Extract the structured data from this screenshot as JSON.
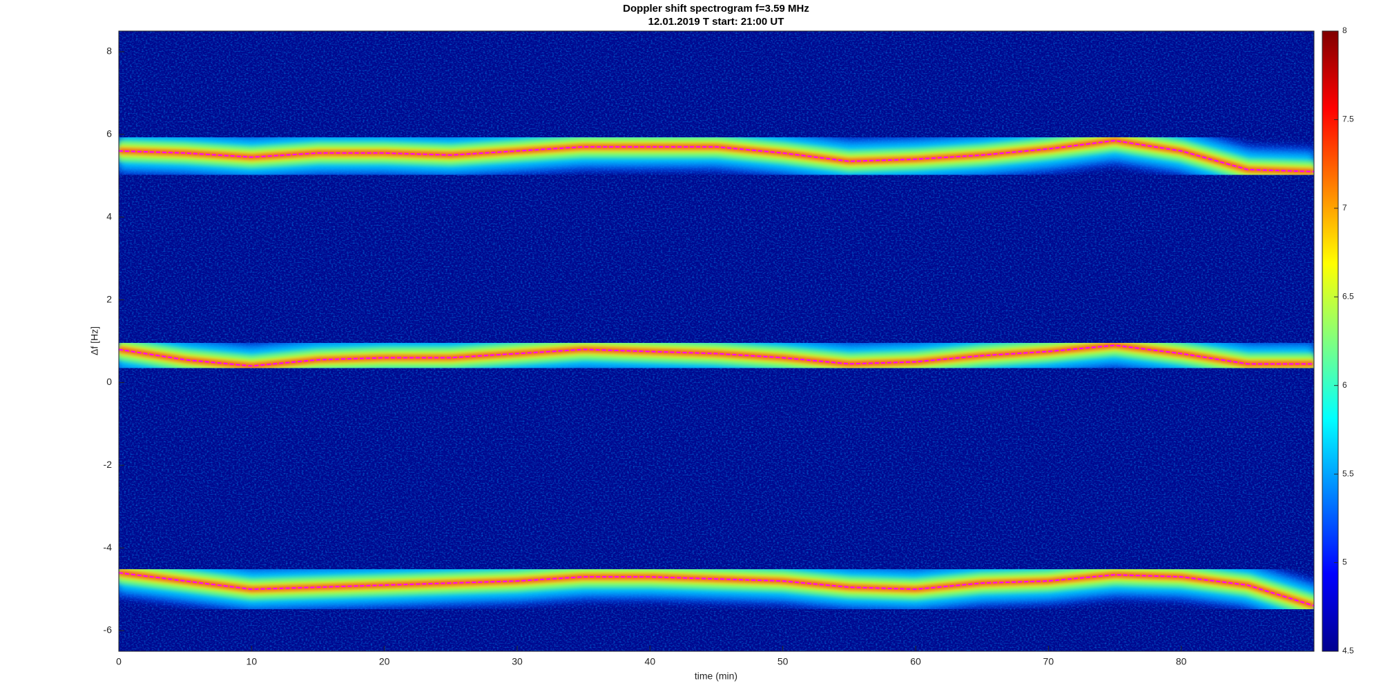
{
  "chart_data": {
    "type": "spectrogram",
    "title": "Doppler shift spectrogram f=3.59 MHz",
    "subtitle": "12.01.2019   T start: 21:00 UT",
    "x_label": "time (min)",
    "y_label": "Δf [Hz]",
    "xlim": [
      0,
      90
    ],
    "xticks": [
      0,
      10,
      20,
      30,
      40,
      50,
      60,
      70,
      80
    ],
    "ylim": [
      -6.5,
      8.5
    ],
    "yticks": [
      -6,
      -4,
      -2,
      0,
      2,
      4,
      6,
      8
    ],
    "clim": [
      4.5,
      8
    ],
    "cticks": [
      4.5,
      5,
      5.5,
      6,
      6.5,
      7,
      7.5,
      8
    ],
    "colormap": "jet",
    "background": "#00088f",
    "x": [
      0,
      5,
      10,
      15,
      20,
      25,
      30,
      35,
      40,
      45,
      50,
      55,
      60,
      65,
      70,
      75,
      80,
      85,
      90
    ],
    "series": [
      {
        "color": "#ff00ff",
        "values": [
          5.6,
          5.55,
          5.45,
          5.55,
          5.55,
          5.5,
          5.6,
          5.7,
          5.7,
          5.7,
          5.55,
          5.35,
          5.4,
          5.5,
          5.65,
          5.85,
          5.6,
          5.15,
          5.1
        ]
      },
      {
        "color": "#ff00ff",
        "values": [
          0.8,
          0.55,
          0.4,
          0.55,
          0.6,
          0.6,
          0.7,
          0.8,
          0.75,
          0.7,
          0.6,
          0.45,
          0.5,
          0.65,
          0.75,
          0.9,
          0.7,
          0.45,
          0.45
        ]
      },
      {
        "color": "#ff00ff",
        "values": [
          -4.6,
          -4.8,
          -5.0,
          -4.95,
          -4.9,
          -4.85,
          -4.8,
          -4.7,
          -4.7,
          -4.75,
          -4.8,
          -4.95,
          -5.0,
          -4.85,
          -4.8,
          -4.65,
          -4.7,
          -4.9,
          -5.4
        ]
      }
    ]
  }
}
